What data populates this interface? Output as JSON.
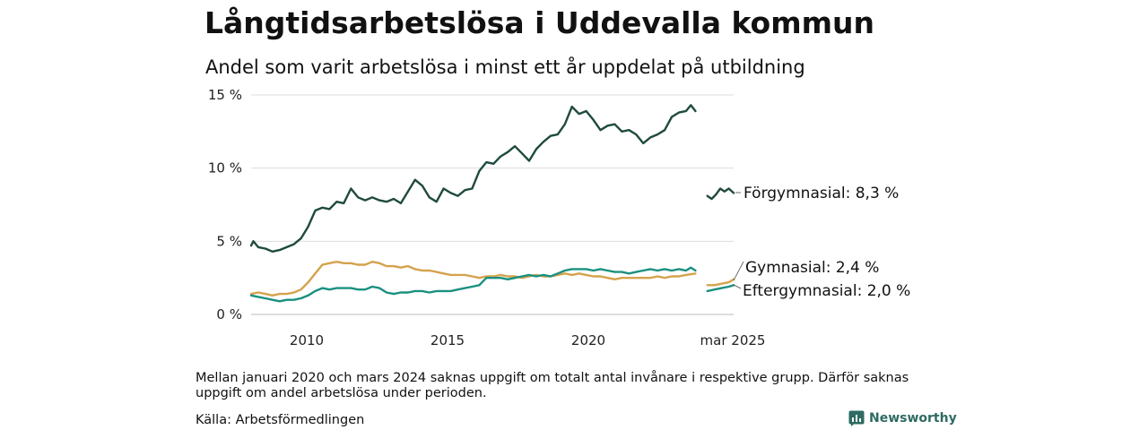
{
  "header": {
    "title": "Långtidsarbetslösa i Uddevalla kommun",
    "subtitle": "Andel som varit arbetslösa i minst ett år uppdelat på utbildning"
  },
  "footer": {
    "note": "Mellan januari 2020 och mars 2024 saknas uppgift om totalt antal invånare i respektive grupp. Därför saknas uppgift om andel arbetslösa under perioden.",
    "source": "Källa: Arbetsförmedlingen",
    "brand": "Newsworthy"
  },
  "colors": {
    "forgymnasial": "#1f4a3f",
    "gymnasial": "#d4a24c",
    "eftergymnasial": "#1a9080",
    "grid": "#dddddd",
    "brand": "#2e6b62"
  },
  "chart_data": {
    "type": "line",
    "title": "Långtidsarbetslösa i Uddevalla kommun",
    "subtitle": "Andel som varit arbetslösa i minst ett år uppdelat på utbildning",
    "y_unit": "%",
    "ylim": [
      0,
      15
    ],
    "yticks": [
      {
        "value": 0,
        "label": "0 %"
      },
      {
        "value": 5,
        "label": "5 %"
      },
      {
        "value": 10,
        "label": "10 %"
      },
      {
        "value": 15,
        "label": "15 %"
      }
    ],
    "xticks": [
      "2010",
      "2015",
      "2020",
      "mar 2025"
    ],
    "grid": true,
    "series": [
      {
        "name": "Förgymnasial",
        "end_label": "Förgymnasial: 8,3 %",
        "color_key": "forgymnasial",
        "segments": [
          [
            {
              "x": 2008.25,
              "y": 4.7
            },
            {
              "x": 2008.33,
              "y": 5.0
            },
            {
              "x": 2008.5,
              "y": 4.6
            },
            {
              "x": 2008.75,
              "y": 4.5
            },
            {
              "x": 2009.0,
              "y": 4.3
            },
            {
              "x": 2009.25,
              "y": 4.4
            },
            {
              "x": 2009.5,
              "y": 4.6
            },
            {
              "x": 2009.75,
              "y": 4.8
            },
            {
              "x": 2010.0,
              "y": 5.2
            },
            {
              "x": 2010.25,
              "y": 6.0
            },
            {
              "x": 2010.5,
              "y": 7.1
            },
            {
              "x": 2010.75,
              "y": 7.3
            },
            {
              "x": 2011.0,
              "y": 7.2
            },
            {
              "x": 2011.25,
              "y": 7.7
            },
            {
              "x": 2011.5,
              "y": 7.6
            },
            {
              "x": 2011.75,
              "y": 8.6
            },
            {
              "x": 2012.0,
              "y": 8.0
            },
            {
              "x": 2012.25,
              "y": 7.8
            },
            {
              "x": 2012.5,
              "y": 8.0
            },
            {
              "x": 2012.75,
              "y": 7.8
            },
            {
              "x": 2013.0,
              "y": 7.7
            },
            {
              "x": 2013.25,
              "y": 7.9
            },
            {
              "x": 2013.5,
              "y": 7.6
            },
            {
              "x": 2013.75,
              "y": 8.4
            },
            {
              "x": 2014.0,
              "y": 9.2
            },
            {
              "x": 2014.25,
              "y": 8.8
            },
            {
              "x": 2014.5,
              "y": 8.0
            },
            {
              "x": 2014.75,
              "y": 7.7
            },
            {
              "x": 2015.0,
              "y": 8.6
            },
            {
              "x": 2015.25,
              "y": 8.3
            },
            {
              "x": 2015.5,
              "y": 8.1
            },
            {
              "x": 2015.75,
              "y": 8.5
            },
            {
              "x": 2016.0,
              "y": 8.6
            },
            {
              "x": 2016.25,
              "y": 9.8
            },
            {
              "x": 2016.5,
              "y": 10.4
            },
            {
              "x": 2016.75,
              "y": 10.3
            },
            {
              "x": 2017.0,
              "y": 10.8
            },
            {
              "x": 2017.25,
              "y": 11.1
            },
            {
              "x": 2017.5,
              "y": 11.5
            },
            {
              "x": 2017.75,
              "y": 11.0
            },
            {
              "x": 2018.0,
              "y": 10.5
            },
            {
              "x": 2018.25,
              "y": 11.3
            },
            {
              "x": 2018.5,
              "y": 11.8
            },
            {
              "x": 2018.75,
              "y": 12.2
            },
            {
              "x": 2019.0,
              "y": 12.3
            },
            {
              "x": 2019.25,
              "y": 13.0
            },
            {
              "x": 2019.5,
              "y": 14.2
            },
            {
              "x": 2019.75,
              "y": 13.7
            },
            {
              "x": 2020.0,
              "y": 13.9
            },
            {
              "x": 2020.25,
              "y": 13.3
            },
            {
              "x": 2020.5,
              "y": 12.6
            },
            {
              "x": 2020.75,
              "y": 12.9
            },
            {
              "x": 2021.0,
              "y": 13.0
            },
            {
              "x": 2021.25,
              "y": 12.5
            },
            {
              "x": 2021.5,
              "y": 12.6
            },
            {
              "x": 2021.75,
              "y": 12.3
            },
            {
              "x": 2022.0,
              "y": 11.7
            },
            {
              "x": 2022.25,
              "y": 12.1
            },
            {
              "x": 2022.5,
              "y": 12.3
            },
            {
              "x": 2022.75,
              "y": 12.6
            },
            {
              "x": 2023.0,
              "y": 13.5
            },
            {
              "x": 2023.25,
              "y": 13.8
            },
            {
              "x": 2023.5,
              "y": 13.9
            },
            {
              "x": 2023.67,
              "y": 14.3
            },
            {
              "x": 2023.83,
              "y": 13.9
            }
          ],
          [
            {
              "x": 2024.25,
              "y": 8.1
            },
            {
              "x": 2024.4,
              "y": 7.9
            },
            {
              "x": 2024.55,
              "y": 8.2
            },
            {
              "x": 2024.7,
              "y": 8.6
            },
            {
              "x": 2024.85,
              "y": 8.4
            },
            {
              "x": 2025.0,
              "y": 8.6
            },
            {
              "x": 2025.17,
              "y": 8.3
            }
          ]
        ]
      },
      {
        "name": "Gymnasial",
        "end_label": "Gymnasial: 2,4 %",
        "color_key": "gymnasial",
        "segments": [
          [
            {
              "x": 2008.25,
              "y": 1.4
            },
            {
              "x": 2008.5,
              "y": 1.5
            },
            {
              "x": 2008.75,
              "y": 1.4
            },
            {
              "x": 2009.0,
              "y": 1.3
            },
            {
              "x": 2009.25,
              "y": 1.4
            },
            {
              "x": 2009.5,
              "y": 1.4
            },
            {
              "x": 2009.75,
              "y": 1.5
            },
            {
              "x": 2010.0,
              "y": 1.7
            },
            {
              "x": 2010.25,
              "y": 2.2
            },
            {
              "x": 2010.5,
              "y": 2.8
            },
            {
              "x": 2010.75,
              "y": 3.4
            },
            {
              "x": 2011.0,
              "y": 3.5
            },
            {
              "x": 2011.25,
              "y": 3.6
            },
            {
              "x": 2011.5,
              "y": 3.5
            },
            {
              "x": 2011.75,
              "y": 3.5
            },
            {
              "x": 2012.0,
              "y": 3.4
            },
            {
              "x": 2012.25,
              "y": 3.4
            },
            {
              "x": 2012.5,
              "y": 3.6
            },
            {
              "x": 2012.75,
              "y": 3.5
            },
            {
              "x": 2013.0,
              "y": 3.3
            },
            {
              "x": 2013.25,
              "y": 3.3
            },
            {
              "x": 2013.5,
              "y": 3.2
            },
            {
              "x": 2013.75,
              "y": 3.3
            },
            {
              "x": 2014.0,
              "y": 3.1
            },
            {
              "x": 2014.25,
              "y": 3.0
            },
            {
              "x": 2014.5,
              "y": 3.0
            },
            {
              "x": 2014.75,
              "y": 2.9
            },
            {
              "x": 2015.0,
              "y": 2.8
            },
            {
              "x": 2015.25,
              "y": 2.7
            },
            {
              "x": 2015.5,
              "y": 2.7
            },
            {
              "x": 2015.75,
              "y": 2.7
            },
            {
              "x": 2016.0,
              "y": 2.6
            },
            {
              "x": 2016.25,
              "y": 2.5
            },
            {
              "x": 2016.5,
              "y": 2.6
            },
            {
              "x": 2016.75,
              "y": 2.6
            },
            {
              "x": 2017.0,
              "y": 2.7
            },
            {
              "x": 2017.25,
              "y": 2.6
            },
            {
              "x": 2017.5,
              "y": 2.6
            },
            {
              "x": 2017.75,
              "y": 2.5
            },
            {
              "x": 2018.0,
              "y": 2.6
            },
            {
              "x": 2018.25,
              "y": 2.7
            },
            {
              "x": 2018.5,
              "y": 2.6
            },
            {
              "x": 2018.75,
              "y": 2.6
            },
            {
              "x": 2019.0,
              "y": 2.7
            },
            {
              "x": 2019.25,
              "y": 2.8
            },
            {
              "x": 2019.5,
              "y": 2.7
            },
            {
              "x": 2019.75,
              "y": 2.8
            },
            {
              "x": 2020.0,
              "y": 2.7
            },
            {
              "x": 2020.25,
              "y": 2.6
            },
            {
              "x": 2020.5,
              "y": 2.6
            },
            {
              "x": 2020.75,
              "y": 2.5
            },
            {
              "x": 2021.0,
              "y": 2.4
            },
            {
              "x": 2021.25,
              "y": 2.5
            },
            {
              "x": 2021.5,
              "y": 2.5
            },
            {
              "x": 2021.75,
              "y": 2.5
            },
            {
              "x": 2022.0,
              "y": 2.5
            },
            {
              "x": 2022.25,
              "y": 2.5
            },
            {
              "x": 2022.5,
              "y": 2.6
            },
            {
              "x": 2022.75,
              "y": 2.5
            },
            {
              "x": 2023.0,
              "y": 2.6
            },
            {
              "x": 2023.25,
              "y": 2.6
            },
            {
              "x": 2023.5,
              "y": 2.7
            },
            {
              "x": 2023.83,
              "y": 2.8
            }
          ],
          [
            {
              "x": 2024.25,
              "y": 2.0
            },
            {
              "x": 2024.5,
              "y": 2.0
            },
            {
              "x": 2024.75,
              "y": 2.1
            },
            {
              "x": 2025.0,
              "y": 2.2
            },
            {
              "x": 2025.17,
              "y": 2.4
            }
          ]
        ]
      },
      {
        "name": "Eftergymnasial",
        "end_label": "Eftergymnasial: 2,0 %",
        "color_key": "eftergymnasial",
        "segments": [
          [
            {
              "x": 2008.25,
              "y": 1.3
            },
            {
              "x": 2008.5,
              "y": 1.2
            },
            {
              "x": 2008.75,
              "y": 1.1
            },
            {
              "x": 2009.0,
              "y": 1.0
            },
            {
              "x": 2009.25,
              "y": 0.9
            },
            {
              "x": 2009.5,
              "y": 1.0
            },
            {
              "x": 2009.75,
              "y": 1.0
            },
            {
              "x": 2010.0,
              "y": 1.1
            },
            {
              "x": 2010.25,
              "y": 1.3
            },
            {
              "x": 2010.5,
              "y": 1.6
            },
            {
              "x": 2010.75,
              "y": 1.8
            },
            {
              "x": 2011.0,
              "y": 1.7
            },
            {
              "x": 2011.25,
              "y": 1.8
            },
            {
              "x": 2011.5,
              "y": 1.8
            },
            {
              "x": 2011.75,
              "y": 1.8
            },
            {
              "x": 2012.0,
              "y": 1.7
            },
            {
              "x": 2012.25,
              "y": 1.7
            },
            {
              "x": 2012.5,
              "y": 1.9
            },
            {
              "x": 2012.75,
              "y": 1.8
            },
            {
              "x": 2013.0,
              "y": 1.5
            },
            {
              "x": 2013.25,
              "y": 1.4
            },
            {
              "x": 2013.5,
              "y": 1.5
            },
            {
              "x": 2013.75,
              "y": 1.5
            },
            {
              "x": 2014.0,
              "y": 1.6
            },
            {
              "x": 2014.25,
              "y": 1.6
            },
            {
              "x": 2014.5,
              "y": 1.5
            },
            {
              "x": 2014.75,
              "y": 1.6
            },
            {
              "x": 2015.0,
              "y": 1.6
            },
            {
              "x": 2015.25,
              "y": 1.6
            },
            {
              "x": 2015.5,
              "y": 1.7
            },
            {
              "x": 2015.75,
              "y": 1.8
            },
            {
              "x": 2016.0,
              "y": 1.9
            },
            {
              "x": 2016.25,
              "y": 2.0
            },
            {
              "x": 2016.5,
              "y": 2.5
            },
            {
              "x": 2016.75,
              "y": 2.5
            },
            {
              "x": 2017.0,
              "y": 2.5
            },
            {
              "x": 2017.25,
              "y": 2.4
            },
            {
              "x": 2017.5,
              "y": 2.5
            },
            {
              "x": 2017.75,
              "y": 2.6
            },
            {
              "x": 2018.0,
              "y": 2.7
            },
            {
              "x": 2018.25,
              "y": 2.6
            },
            {
              "x": 2018.5,
              "y": 2.7
            },
            {
              "x": 2018.75,
              "y": 2.6
            },
            {
              "x": 2019.0,
              "y": 2.8
            },
            {
              "x": 2019.25,
              "y": 3.0
            },
            {
              "x": 2019.5,
              "y": 3.1
            },
            {
              "x": 2019.75,
              "y": 3.1
            },
            {
              "x": 2020.0,
              "y": 3.1
            },
            {
              "x": 2020.25,
              "y": 3.0
            },
            {
              "x": 2020.5,
              "y": 3.1
            },
            {
              "x": 2020.75,
              "y": 3.0
            },
            {
              "x": 2021.0,
              "y": 2.9
            },
            {
              "x": 2021.25,
              "y": 2.9
            },
            {
              "x": 2021.5,
              "y": 2.8
            },
            {
              "x": 2021.75,
              "y": 2.9
            },
            {
              "x": 2022.0,
              "y": 3.0
            },
            {
              "x": 2022.25,
              "y": 3.1
            },
            {
              "x": 2022.5,
              "y": 3.0
            },
            {
              "x": 2022.75,
              "y": 3.1
            },
            {
              "x": 2023.0,
              "y": 3.0
            },
            {
              "x": 2023.25,
              "y": 3.1
            },
            {
              "x": 2023.5,
              "y": 3.0
            },
            {
              "x": 2023.67,
              "y": 3.2
            },
            {
              "x": 2023.83,
              "y": 3.0
            }
          ],
          [
            {
              "x": 2024.25,
              "y": 1.6
            },
            {
              "x": 2024.5,
              "y": 1.7
            },
            {
              "x": 2024.75,
              "y": 1.8
            },
            {
              "x": 2025.0,
              "y": 1.9
            },
            {
              "x": 2025.17,
              "y": 2.0
            }
          ]
        ]
      }
    ]
  }
}
